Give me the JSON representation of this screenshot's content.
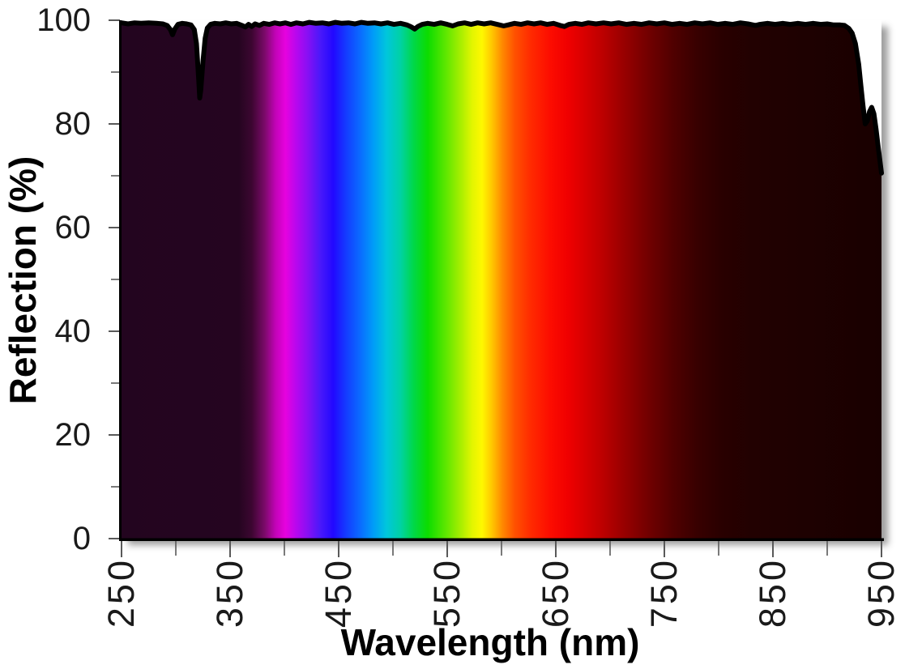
{
  "page": {
    "background": "#ffffff"
  },
  "chart_data": {
    "type": "area",
    "title": "",
    "xlabel": "Wavelength (nm)",
    "ylabel": "Reflection (%)",
    "xlim": [
      250,
      950
    ],
    "ylim": [
      0,
      100
    ],
    "grid": false,
    "legend": false,
    "x_tick_labels": [
      "250",
      "350",
      "450",
      "550",
      "650",
      "750",
      "850",
      "950"
    ],
    "y_tick_labels": [
      "0",
      "20",
      "40",
      "60",
      "80",
      "100"
    ],
    "x_minor_ticks": [
      300,
      400,
      500,
      600,
      700,
      800,
      900
    ],
    "y_minor_ticks": [
      10,
      30,
      50,
      70,
      90
    ],
    "axis_color": "#000000",
    "tick_color": "#595959",
    "label_color": "#1a1a1a",
    "series": [
      {
        "name": "Reflection",
        "line_color": "#000000",
        "line_width": 6,
        "fill": "spectrum-gradient",
        "points": [
          [
            250,
            99.5
          ],
          [
            256,
            99.3
          ],
          [
            262,
            99.5
          ],
          [
            268,
            99.4
          ],
          [
            275,
            99.5
          ],
          [
            282,
            99.4
          ],
          [
            288,
            99.3
          ],
          [
            292,
            99.0
          ],
          [
            295,
            98.2
          ],
          [
            297,
            97.2
          ],
          [
            299,
            98.3
          ],
          [
            302,
            99.2
          ],
          [
            306,
            99.4
          ],
          [
            310,
            99.3
          ],
          [
            314,
            99.1
          ],
          [
            317,
            98.2
          ],
          [
            319,
            95.5
          ],
          [
            321,
            89.0
          ],
          [
            322,
            85.0
          ],
          [
            323,
            86.5
          ],
          [
            325,
            92.0
          ],
          [
            327,
            96.5
          ],
          [
            329,
            98.5
          ],
          [
            332,
            99.2
          ],
          [
            336,
            99.4
          ],
          [
            341,
            99.3
          ],
          [
            346,
            99.5
          ],
          [
            351,
            99.3
          ],
          [
            356,
            99.4
          ],
          [
            361,
            99.0
          ],
          [
            364,
            98.7
          ],
          [
            367,
            99.2
          ],
          [
            370,
            98.8
          ],
          [
            373,
            99.3
          ],
          [
            377,
            99.0
          ],
          [
            381,
            99.4
          ],
          [
            386,
            99.2
          ],
          [
            391,
            99.5
          ],
          [
            396,
            99.3
          ],
          [
            401,
            99.5
          ],
          [
            406,
            99.2
          ],
          [
            411,
            99.5
          ],
          [
            417,
            99.3
          ],
          [
            423,
            99.6
          ],
          [
            429,
            99.4
          ],
          [
            435,
            99.5
          ],
          [
            441,
            99.3
          ],
          [
            447,
            99.6
          ],
          [
            453,
            99.4
          ],
          [
            459,
            99.5
          ],
          [
            465,
            99.3
          ],
          [
            471,
            99.6
          ],
          [
            477,
            99.4
          ],
          [
            483,
            99.5
          ],
          [
            489,
            99.3
          ],
          [
            495,
            99.5
          ],
          [
            501,
            99.2
          ],
          [
            507,
            99.4
          ],
          [
            513,
            99.1
          ],
          [
            517,
            98.7
          ],
          [
            520,
            98.3
          ],
          [
            523,
            98.8
          ],
          [
            527,
            99.2
          ],
          [
            532,
            99.4
          ],
          [
            538,
            99.2
          ],
          [
            544,
            99.5
          ],
          [
            550,
            99.2
          ],
          [
            555,
            98.9
          ],
          [
            560,
            99.3
          ],
          [
            566,
            99.5
          ],
          [
            572,
            99.2
          ],
          [
            578,
            99.5
          ],
          [
            584,
            99.3
          ],
          [
            590,
            99.5
          ],
          [
            596,
            99.2
          ],
          [
            602,
            98.9
          ],
          [
            606,
            99.1
          ],
          [
            612,
            99.4
          ],
          [
            618,
            99.2
          ],
          [
            624,
            99.5
          ],
          [
            630,
            99.3
          ],
          [
            636,
            99.5
          ],
          [
            642,
            99.2
          ],
          [
            648,
            99.4
          ],
          [
            654,
            99.0
          ],
          [
            658,
            98.8
          ],
          [
            662,
            99.2
          ],
          [
            668,
            99.4
          ],
          [
            674,
            99.2
          ],
          [
            680,
            99.5
          ],
          [
            687,
            99.3
          ],
          [
            694,
            99.5
          ],
          [
            701,
            99.3
          ],
          [
            708,
            99.5
          ],
          [
            715,
            99.2
          ],
          [
            722,
            99.4
          ],
          [
            729,
            99.2
          ],
          [
            736,
            99.5
          ],
          [
            743,
            99.3
          ],
          [
            750,
            99.5
          ],
          [
            757,
            99.2
          ],
          [
            764,
            99.4
          ],
          [
            771,
            99.2
          ],
          [
            778,
            99.5
          ],
          [
            785,
            99.3
          ],
          [
            792,
            99.5
          ],
          [
            799,
            99.2
          ],
          [
            806,
            99.4
          ],
          [
            813,
            99.2
          ],
          [
            820,
            99.5
          ],
          [
            827,
            99.3
          ],
          [
            834,
            99.0
          ],
          [
            838,
            99.2
          ],
          [
            845,
            99.4
          ],
          [
            852,
            99.2
          ],
          [
            859,
            99.4
          ],
          [
            866,
            99.2
          ],
          [
            873,
            99.4
          ],
          [
            880,
            99.2
          ],
          [
            887,
            99.4
          ],
          [
            894,
            99.2
          ],
          [
            900,
            99.3
          ],
          [
            906,
            99.1
          ],
          [
            912,
            99.1
          ],
          [
            916,
            99.0
          ],
          [
            920,
            98.4
          ],
          [
            923,
            97.5
          ],
          [
            926,
            95.5
          ],
          [
            929,
            91.5
          ],
          [
            931,
            87.5
          ],
          [
            933,
            83.5
          ],
          [
            935,
            80.0
          ],
          [
            937,
            80.6
          ],
          [
            939,
            82.4
          ],
          [
            941,
            83.2
          ],
          [
            943,
            82.0
          ],
          [
            945,
            79.0
          ],
          [
            947,
            75.5
          ],
          [
            950,
            70.5
          ]
        ]
      }
    ],
    "spectrum_gradient_stops": [
      {
        "wavelength": 250,
        "color": "#23051f"
      },
      {
        "wavelength": 358,
        "color": "#250520"
      },
      {
        "wavelength": 370,
        "color": "#3c0631"
      },
      {
        "wavelength": 382,
        "color": "#7c0a6a"
      },
      {
        "wavelength": 392,
        "color": "#c303b8"
      },
      {
        "wavelength": 401,
        "color": "#e602df"
      },
      {
        "wavelength": 411,
        "color": "#b807ee"
      },
      {
        "wavelength": 422,
        "color": "#8510f4"
      },
      {
        "wavelength": 433,
        "color": "#4a18fa"
      },
      {
        "wavelength": 445,
        "color": "#2208ff"
      },
      {
        "wavelength": 457,
        "color": "#143cff"
      },
      {
        "wavelength": 470,
        "color": "#0a6cff"
      },
      {
        "wavelength": 482,
        "color": "#009cf8"
      },
      {
        "wavelength": 494,
        "color": "#00c6dc"
      },
      {
        "wavelength": 507,
        "color": "#00d2a4"
      },
      {
        "wavelength": 519,
        "color": "#00d848"
      },
      {
        "wavelength": 532,
        "color": "#0cdc00"
      },
      {
        "wavelength": 547,
        "color": "#55e600"
      },
      {
        "wavelength": 562,
        "color": "#a5ee00"
      },
      {
        "wavelength": 573,
        "color": "#e2f600"
      },
      {
        "wavelength": 582,
        "color": "#fef800"
      },
      {
        "wavelength": 591,
        "color": "#ffc800"
      },
      {
        "wavelength": 601,
        "color": "#ff8800"
      },
      {
        "wavelength": 612,
        "color": "#ff5200"
      },
      {
        "wavelength": 627,
        "color": "#ff2a00"
      },
      {
        "wavelength": 645,
        "color": "#fc0c00"
      },
      {
        "wavelength": 661,
        "color": "#f00000"
      },
      {
        "wavelength": 676,
        "color": "#d80000"
      },
      {
        "wavelength": 691,
        "color": "#c00000"
      },
      {
        "wavelength": 713,
        "color": "#980000"
      },
      {
        "wavelength": 736,
        "color": "#700000"
      },
      {
        "wavelength": 758,
        "color": "#500000"
      },
      {
        "wavelength": 780,
        "color": "#380000"
      },
      {
        "wavelength": 803,
        "color": "#290000"
      },
      {
        "wavelength": 830,
        "color": "#220101"
      },
      {
        "wavelength": 880,
        "color": "#1e0101"
      },
      {
        "wavelength": 950,
        "color": "#190000"
      }
    ]
  }
}
